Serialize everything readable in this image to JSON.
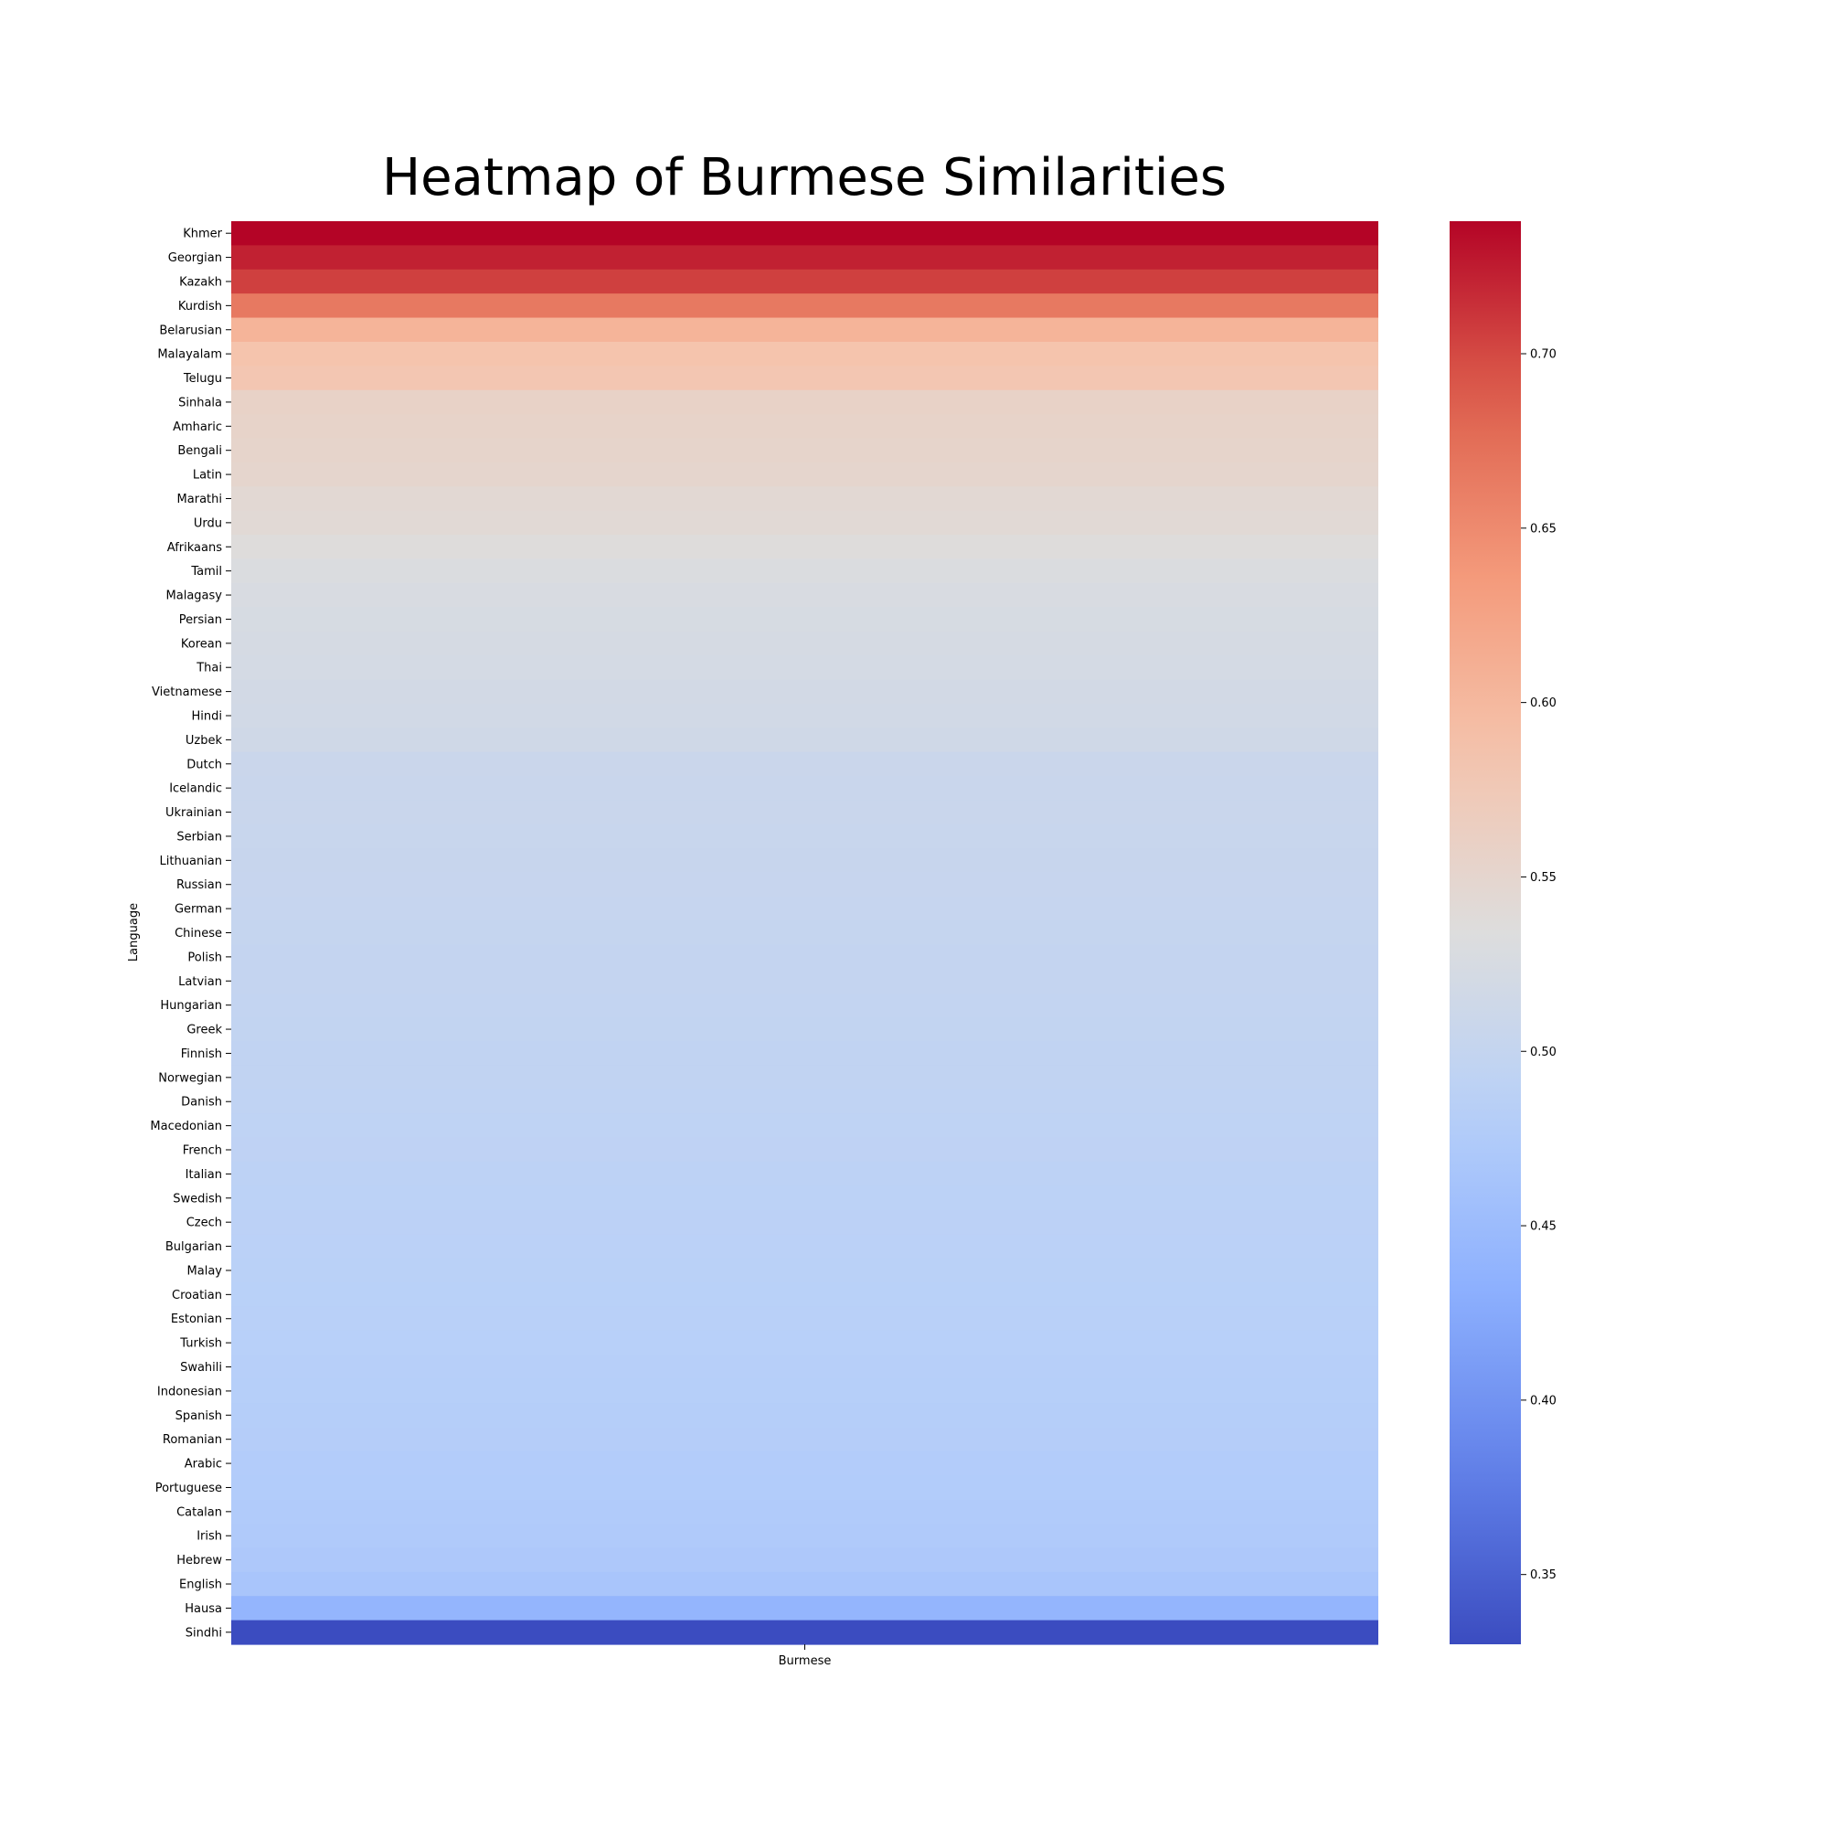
{
  "chart_data": {
    "type": "heatmap",
    "title": "Heatmap of Burmese Similarities",
    "xlabel": "",
    "ylabel": "Language",
    "x_categories": [
      "Burmese"
    ],
    "y_categories": [
      "Khmer",
      "Georgian",
      "Kazakh",
      "Kurdish",
      "Belarusian",
      "Malayalam",
      "Telugu",
      "Sinhala",
      "Amharic",
      "Bengali",
      "Latin",
      "Marathi",
      "Urdu",
      "Afrikaans",
      "Tamil",
      "Malagasy",
      "Persian",
      "Korean",
      "Thai",
      "Vietnamese",
      "Hindi",
      "Uzbek",
      "Dutch",
      "Icelandic",
      "Ukrainian",
      "Serbian",
      "Lithuanian",
      "Russian",
      "German",
      "Chinese",
      "Polish",
      "Latvian",
      "Hungarian",
      "Greek",
      "Finnish",
      "Norwegian",
      "Danish",
      "Macedonian",
      "French",
      "Italian",
      "Swedish",
      "Czech",
      "Bulgarian",
      "Malay",
      "Croatian",
      "Estonian",
      "Turkish",
      "Swahili",
      "Indonesian",
      "Spanish",
      "Romanian",
      "Arabic",
      "Portuguese",
      "Catalan",
      "Irish",
      "Hebrew",
      "English",
      "Hausa",
      "Sindhi"
    ],
    "values": [
      0.738,
      0.722,
      0.705,
      0.665,
      0.605,
      0.585,
      0.58,
      0.557,
      0.555,
      0.553,
      0.551,
      0.545,
      0.543,
      0.536,
      0.53,
      0.527,
      0.525,
      0.523,
      0.521,
      0.519,
      0.517,
      0.515,
      0.508,
      0.507,
      0.506,
      0.505,
      0.504,
      0.503,
      0.502,
      0.501,
      0.5,
      0.499,
      0.498,
      0.497,
      0.496,
      0.495,
      0.494,
      0.493,
      0.492,
      0.49,
      0.489,
      0.488,
      0.487,
      0.486,
      0.485,
      0.484,
      0.483,
      0.482,
      0.481,
      0.48,
      0.479,
      0.477,
      0.476,
      0.475,
      0.473,
      0.471,
      0.465,
      0.44,
      0.33
    ],
    "colormap": "coolwarm",
    "colorbar": {
      "vmin": 0.33,
      "vmax": 0.738,
      "ticks": [
        0.35,
        0.4,
        0.45,
        0.5,
        0.55,
        0.6,
        0.65,
        0.7
      ],
      "tick_labels": [
        "0.35",
        "0.40",
        "0.45",
        "0.50",
        "0.55",
        "0.60",
        "0.65",
        "0.70"
      ]
    },
    "grid": false
  }
}
